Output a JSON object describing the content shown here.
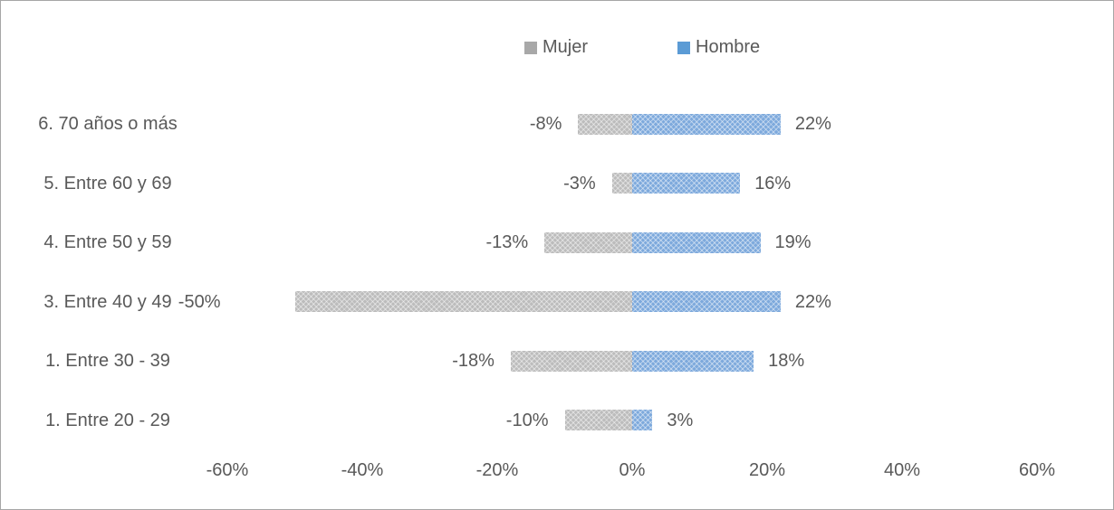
{
  "chart_data": {
    "type": "bar",
    "orientation": "horizontal-diverging",
    "title": "",
    "categories": [
      "6. 70 años o más",
      "5. Entre 60 y 69",
      "4. Entre 50 y 59",
      "3. Entre 40 y 49",
      "1. Entre 30 - 39",
      "1. Entre 20 - 29"
    ],
    "series": [
      {
        "name": "Mujer",
        "color": "#a8a8a8",
        "bar_color": "#bcbcbc",
        "values": [
          -8,
          -3,
          -13,
          -50,
          -18,
          -10
        ],
        "labels": [
          "-8%",
          "-3%",
          "-13%",
          "-50%",
          "-18%",
          "-10%"
        ]
      },
      {
        "name": "Hombre",
        "color": "#5b9bd5",
        "bar_color": "#7da9dc",
        "values": [
          22,
          16,
          19,
          22,
          18,
          3
        ],
        "labels": [
          "22%",
          "16%",
          "19%",
          "22%",
          "18%",
          "3%"
        ]
      }
    ],
    "x_ticks": [
      "-60%",
      "-40%",
      "-20%",
      "0%",
      "20%",
      "40%",
      "60%"
    ],
    "x_tick_values": [
      -60,
      -40,
      -20,
      0,
      20,
      40,
      60
    ],
    "xlim": [
      -66,
      66
    ],
    "legend_position": "top-center",
    "grid": false,
    "data_label_color": "#595959"
  }
}
